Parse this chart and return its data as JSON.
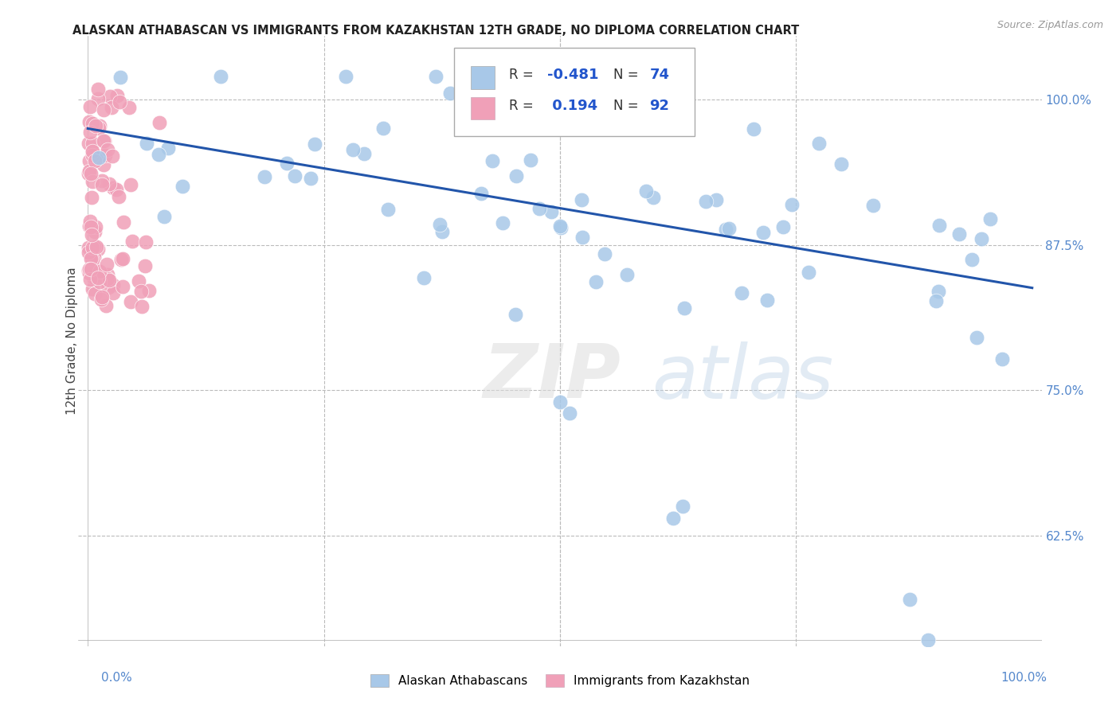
{
  "title": "ALASKAN ATHABASCAN VS IMMIGRANTS FROM KAZAKHSTAN 12TH GRADE, NO DIPLOMA CORRELATION CHART",
  "source": "Source: ZipAtlas.com",
  "ylabel": "12th Grade, No Diploma",
  "legend_label1": "Alaskan Athabascans",
  "legend_label2": "Immigrants from Kazakhstan",
  "R1": "-0.481",
  "N1": "74",
  "R2": "0.194",
  "N2": "92",
  "color_blue": "#a8c8e8",
  "color_pink": "#f0a0b8",
  "color_line": "#2255aa",
  "ytick_vals": [
    0.625,
    0.75,
    0.875,
    1.0
  ],
  "ytick_labels": [
    "62.5%",
    "75.0%",
    "87.5%",
    "100.0%"
  ],
  "xgrid_vals": [
    0.25,
    0.5,
    0.75
  ],
  "ylim_min": 0.53,
  "ylim_max": 1.055,
  "xlim_min": -0.01,
  "xlim_max": 1.01,
  "trend_x0": 0.0,
  "trend_x1": 1.0,
  "trend_y0": 0.975,
  "trend_y1": 0.838
}
